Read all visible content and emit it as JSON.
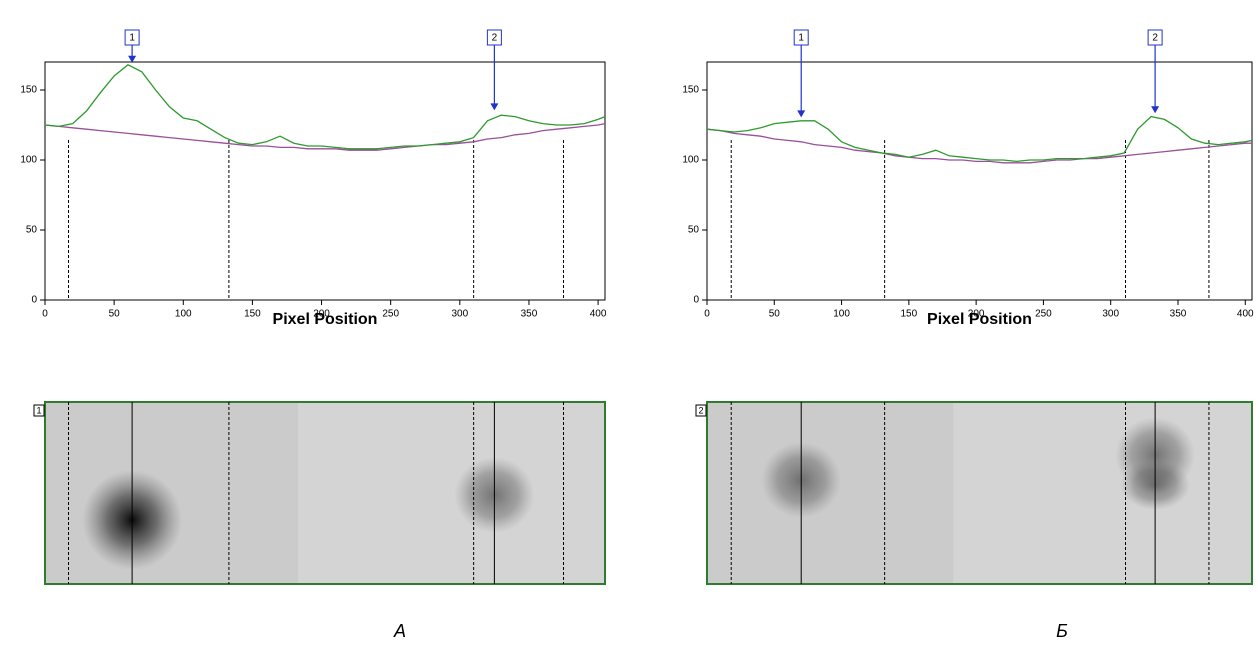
{
  "chart_data": [
    {
      "type": "line",
      "xlabel": "Pixel Position",
      "xlim": [
        0,
        405
      ],
      "ylim": [
        0,
        170
      ],
      "xticks": [
        0,
        50,
        100,
        150,
        200,
        250,
        300,
        350,
        400
      ],
      "yticks": [
        0,
        50,
        100,
        150
      ],
      "x": [
        0,
        10,
        20,
        30,
        40,
        50,
        60,
        70,
        80,
        90,
        100,
        110,
        120,
        130,
        140,
        150,
        160,
        170,
        180,
        190,
        200,
        210,
        220,
        230,
        240,
        250,
        260,
        270,
        280,
        290,
        300,
        310,
        320,
        330,
        340,
        350,
        360,
        370,
        380,
        390,
        400,
        405
      ],
      "series": [
        {
          "color": "#2e9a2e",
          "values": [
            125,
            124,
            126,
            135,
            148,
            160,
            168,
            163,
            150,
            138,
            130,
            128,
            122,
            116,
            112,
            111,
            113,
            117,
            112,
            110,
            110,
            109,
            108,
            108,
            108,
            109,
            110,
            110,
            111,
            112,
            113,
            116,
            128,
            132,
            131,
            128,
            126,
            125,
            125,
            126,
            129,
            131
          ]
        },
        {
          "color": "#9a4f9a",
          "values": [
            125,
            124,
            123,
            122,
            121,
            120,
            119,
            118,
            117,
            116,
            115,
            114,
            113,
            112,
            111,
            110,
            110,
            109,
            109,
            108,
            108,
            108,
            107,
            107,
            107,
            108,
            109,
            110,
            111,
            111,
            112,
            113,
            115,
            116,
            118,
            119,
            121,
            122,
            123,
            124,
            125,
            126
          ]
        }
      ],
      "boundaries": [
        17,
        133,
        310,
        375
      ],
      "annotations": [
        {
          "text": "1",
          "x": 63,
          "y": 168
        },
        {
          "text": "2",
          "x": 325,
          "y": 134
        }
      ],
      "lane_label": "1",
      "caption": "А"
    },
    {
      "type": "line",
      "xlabel": "Pixel Position",
      "xlim": [
        0,
        405
      ],
      "ylim": [
        0,
        170
      ],
      "xticks": [
        0,
        50,
        100,
        150,
        200,
        250,
        300,
        350,
        400
      ],
      "yticks": [
        0,
        50,
        100,
        150
      ],
      "x": [
        0,
        10,
        20,
        30,
        40,
        50,
        60,
        70,
        80,
        90,
        100,
        110,
        120,
        130,
        140,
        150,
        160,
        170,
        180,
        190,
        200,
        210,
        220,
        230,
        240,
        250,
        260,
        270,
        280,
        290,
        300,
        310,
        320,
        330,
        340,
        350,
        360,
        370,
        380,
        390,
        400,
        405
      ],
      "series": [
        {
          "color": "#2e9a2e",
          "values": [
            122,
            121,
            120,
            121,
            123,
            126,
            127,
            128,
            128,
            122,
            113,
            109,
            107,
            105,
            104,
            102,
            104,
            107,
            103,
            102,
            101,
            100,
            100,
            99,
            100,
            100,
            101,
            101,
            101,
            102,
            103,
            105,
            122,
            131,
            129,
            123,
            115,
            112,
            111,
            112,
            113,
            114
          ]
        },
        {
          "color": "#9a4f9a",
          "values": [
            122,
            121,
            119,
            118,
            117,
            115,
            114,
            113,
            111,
            110,
            109,
            107,
            106,
            105,
            103,
            102,
            101,
            101,
            100,
            100,
            99,
            99,
            98,
            98,
            98,
            99,
            100,
            100,
            101,
            101,
            102,
            103,
            104,
            105,
            106,
            107,
            108,
            109,
            110,
            111,
            112,
            112
          ]
        }
      ],
      "boundaries": [
        18,
        132,
        311,
        373
      ],
      "annotations": [
        {
          "text": "1",
          "x": 70,
          "y": 129
        },
        {
          "text": "2",
          "x": 333,
          "y": 132
        }
      ],
      "lane_label": "2",
      "caption": "Б"
    }
  ]
}
